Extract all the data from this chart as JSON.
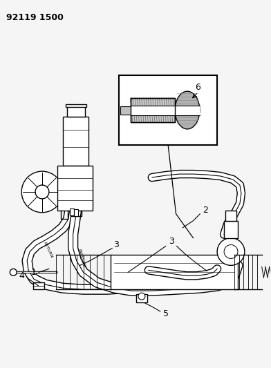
{
  "title_code": "92119 1500",
  "bg_color": "#f5f5f5",
  "fg_color": "#000000",
  "fig_width": 3.92,
  "fig_height": 5.33,
  "dpi": 100
}
